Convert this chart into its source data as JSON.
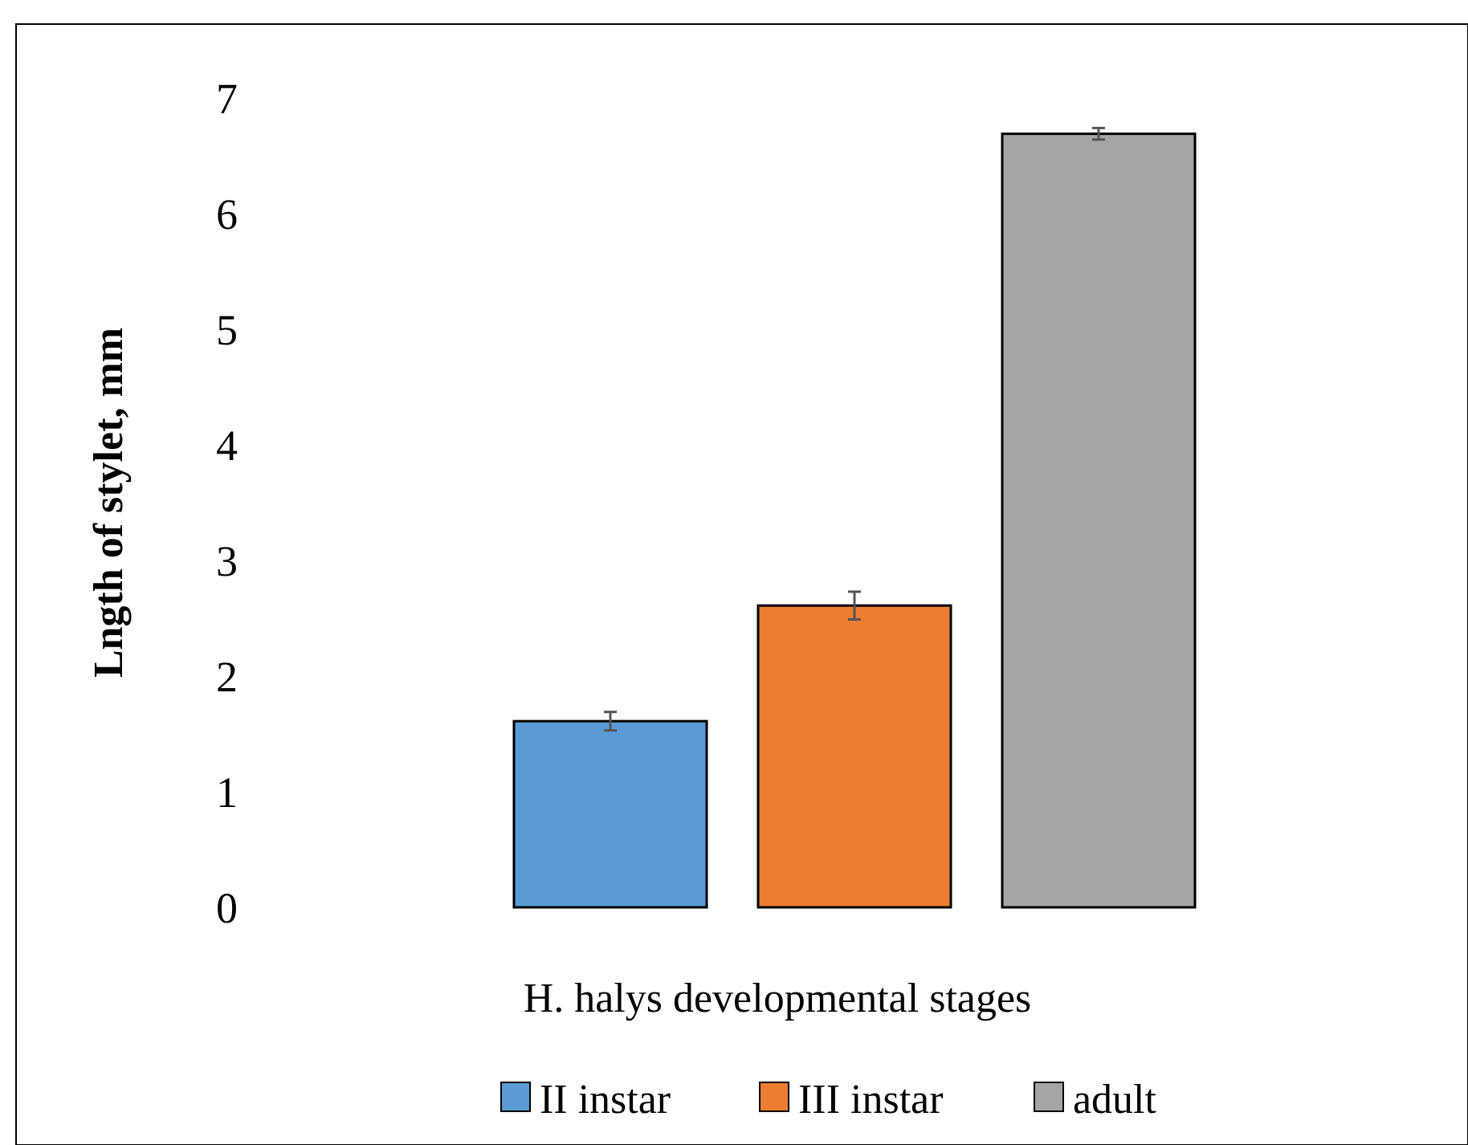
{
  "chart_data": {
    "type": "bar",
    "xlabel": "H. halys developmental stages",
    "ylabel": "Lngth of stylet, mm",
    "categories": [
      null
    ],
    "series": [
      {
        "name": "II instar",
        "color": "#5b9bd5",
        "values": [
          1.61
        ],
        "errors": [
          0.08
        ]
      },
      {
        "name": "III instar",
        "color": "#ed7d31",
        "values": [
          2.61
        ],
        "errors": [
          0.12
        ]
      },
      {
        "name": "adult",
        "color": "#a5a5a5",
        "values": [
          6.69
        ],
        "errors": [
          0.05
        ]
      }
    ],
    "ylim": [
      0,
      7
    ],
    "yticks": [
      0,
      1,
      2,
      3,
      4,
      5,
      6,
      7
    ],
    "grid": false,
    "legend": "bottom"
  }
}
